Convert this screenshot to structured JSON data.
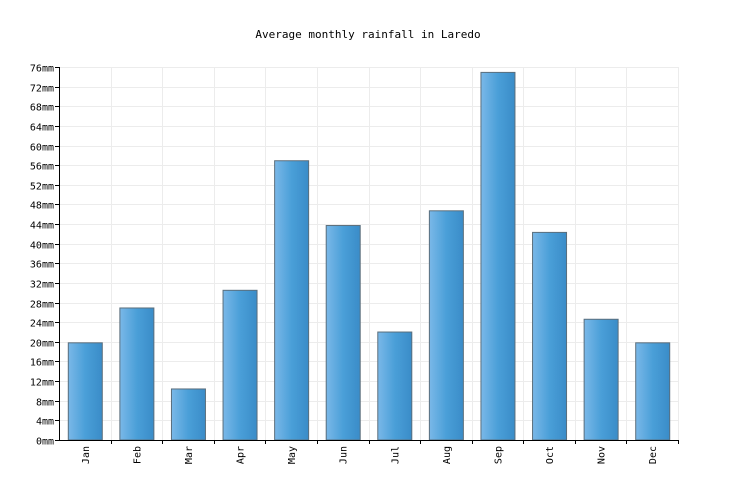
{
  "chart_data": {
    "type": "bar",
    "title": "Average monthly rainfall in Laredo",
    "categories": [
      "Jan",
      "Feb",
      "Mar",
      "Apr",
      "May",
      "Jun",
      "Jul",
      "Aug",
      "Sep",
      "Oct",
      "Nov",
      "Dec"
    ],
    "values": [
      19.8,
      26.9,
      10.4,
      30.5,
      56.9,
      43.7,
      22.0,
      46.7,
      74.9,
      42.3,
      24.6,
      19.8
    ],
    "unit": "mm",
    "ylim": [
      0,
      76
    ],
    "ytick_step": 4,
    "grid": true,
    "bar_color": "#4a9fd8",
    "bar_color_light": "#7ab8e8",
    "bar_color_dark": "#3a8cc8",
    "bar_outline": "#5a6e7c"
  }
}
